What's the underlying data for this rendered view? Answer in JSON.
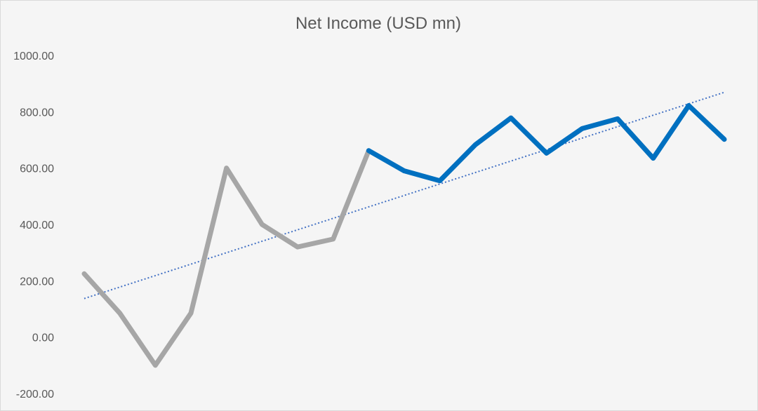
{
  "chart_data": {
    "type": "line",
    "title": "Net Income (USD mn)",
    "xlabel": "",
    "ylabel": "",
    "ylim": [
      -200,
      1000
    ],
    "y_ticks": [
      "1000.00",
      "800.00",
      "600.00",
      "400.00",
      "200.00",
      "0.00",
      "-200.00"
    ],
    "y_tick_values": [
      1000,
      800,
      600,
      400,
      200,
      0,
      -200
    ],
    "grid": false,
    "legend": "none",
    "x": [
      1,
      2,
      3,
      4,
      5,
      6,
      7,
      8,
      9,
      10,
      11,
      12,
      13,
      14,
      15,
      16,
      17,
      18,
      19
    ],
    "series": [
      {
        "color": "#a6a6a6",
        "points": [
          [
            1,
            225
          ],
          [
            2,
            85
          ],
          [
            3,
            -100
          ],
          [
            4,
            85
          ],
          [
            5,
            600
          ],
          [
            6,
            400
          ],
          [
            7,
            320
          ],
          [
            8,
            348
          ],
          [
            9,
            662
          ]
        ]
      },
      {
        "color": "#0070c0",
        "points": [
          [
            9,
            662
          ],
          [
            10,
            590
          ],
          [
            11,
            555
          ],
          [
            12,
            683
          ],
          [
            13,
            778
          ],
          [
            14,
            653
          ],
          [
            15,
            740
          ],
          [
            16,
            775
          ],
          [
            17,
            635
          ],
          [
            18,
            822
          ],
          [
            19,
            702
          ]
        ]
      }
    ],
    "trendline": {
      "style": "dotted",
      "color": "#4472c4",
      "start": [
        1,
        137
      ],
      "end": [
        19,
        869
      ]
    }
  }
}
